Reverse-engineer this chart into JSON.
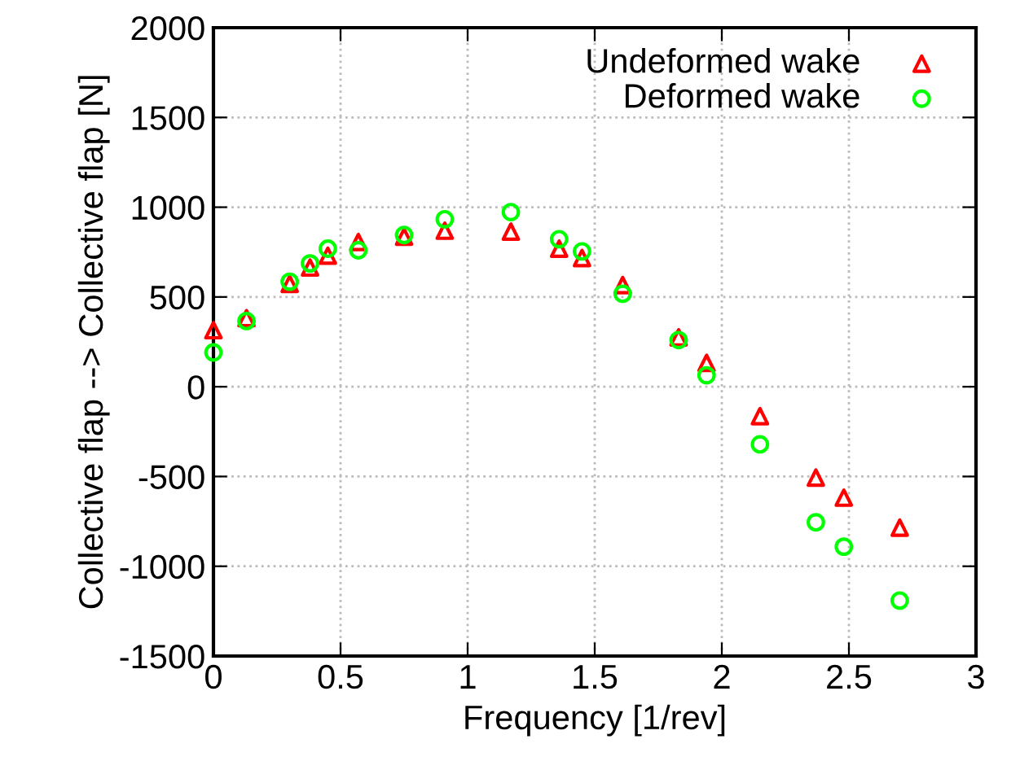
{
  "chart_data": {
    "type": "scatter",
    "xlabel": "Frequency [1/rev]",
    "ylabel": "Collective flap --> Collective flap [N]",
    "xlim": [
      0,
      3
    ],
    "xticks": [
      0,
      0.5,
      1,
      1.5,
      2,
      2.5,
      3
    ],
    "ylim": [
      -1500,
      2000
    ],
    "yticks": [
      -1500,
      -1000,
      -500,
      0,
      500,
      1000,
      1500,
      2000
    ],
    "grid": true,
    "legend": "top right",
    "series": [
      {
        "name": "Undeformed wake",
        "color": "#ff0000",
        "marker": "triangle",
        "x": [
          0,
          0.13,
          0.3,
          0.38,
          0.45,
          0.57,
          0.75,
          0.91,
          1.17,
          1.36,
          1.45,
          1.61,
          1.83,
          1.94,
          2.15,
          2.37,
          2.48,
          2.7
        ],
        "values": [
          315,
          382,
          573,
          664,
          730,
          806,
          836,
          869,
          864,
          769,
          717,
          566,
          275,
          133,
          -164,
          -506,
          -618,
          -785
        ]
      },
      {
        "name": "Deformed wake",
        "color": "#00ff00",
        "marker": "circle",
        "x": [
          0,
          0.13,
          0.3,
          0.38,
          0.45,
          0.57,
          0.75,
          0.91,
          1.17,
          1.36,
          1.45,
          1.61,
          1.83,
          1.94,
          2.15,
          2.37,
          2.48,
          2.7
        ],
        "values": [
          191,
          366,
          585,
          687,
          769,
          760,
          845,
          933,
          973,
          822,
          754,
          518,
          260,
          64,
          -321,
          -755,
          -891,
          -1191
        ]
      }
    ]
  }
}
